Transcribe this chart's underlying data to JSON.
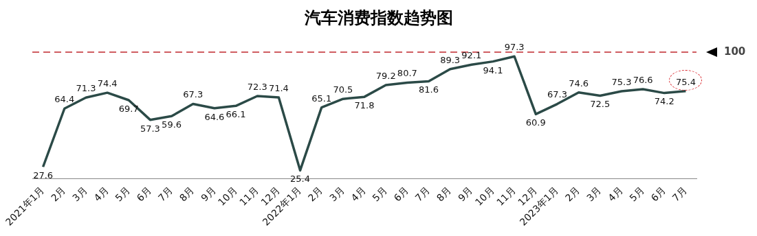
{
  "chart_data": {
    "type": "line",
    "title": "汽车消费指数趋势图",
    "categories": [
      "2021年1月",
      "2月",
      "3月",
      "4月",
      "5月",
      "6月",
      "7月",
      "8月",
      "9月",
      "10月",
      "11月",
      "12月",
      "2022年1月",
      "2月",
      "3月",
      "4月",
      "5月",
      "6月",
      "7月",
      "8月",
      "9月",
      "10月",
      "11月",
      "12月",
      "2023年1月",
      "2月",
      "3月",
      "4月",
      "5月",
      "6月",
      "7月"
    ],
    "series": [
      {
        "color": "#2b4a47",
        "values": [
          27.6,
          64.4,
          71.3,
          74.4,
          69.7,
          57.3,
          59.6,
          67.3,
          64.6,
          66.1,
          72.3,
          71.4,
          25.4,
          65.1,
          70.5,
          71.8,
          79.2,
          80.7,
          81.6,
          89.3,
          92.1,
          94.1,
          97.3,
          60.9,
          67.3,
          74.6,
          72.5,
          75.3,
          76.6,
          74.2,
          75.4
        ]
      }
    ],
    "ref_lines": [
      {
        "axis": "y",
        "value": 100,
        "label": "100",
        "color": "#c0272d",
        "line_style": "dashed"
      }
    ],
    "data_labels": true,
    "grid": false,
    "legend": false,
    "tick_labels": "x",
    "marker": "none",
    "line_style": "solid"
  }
}
